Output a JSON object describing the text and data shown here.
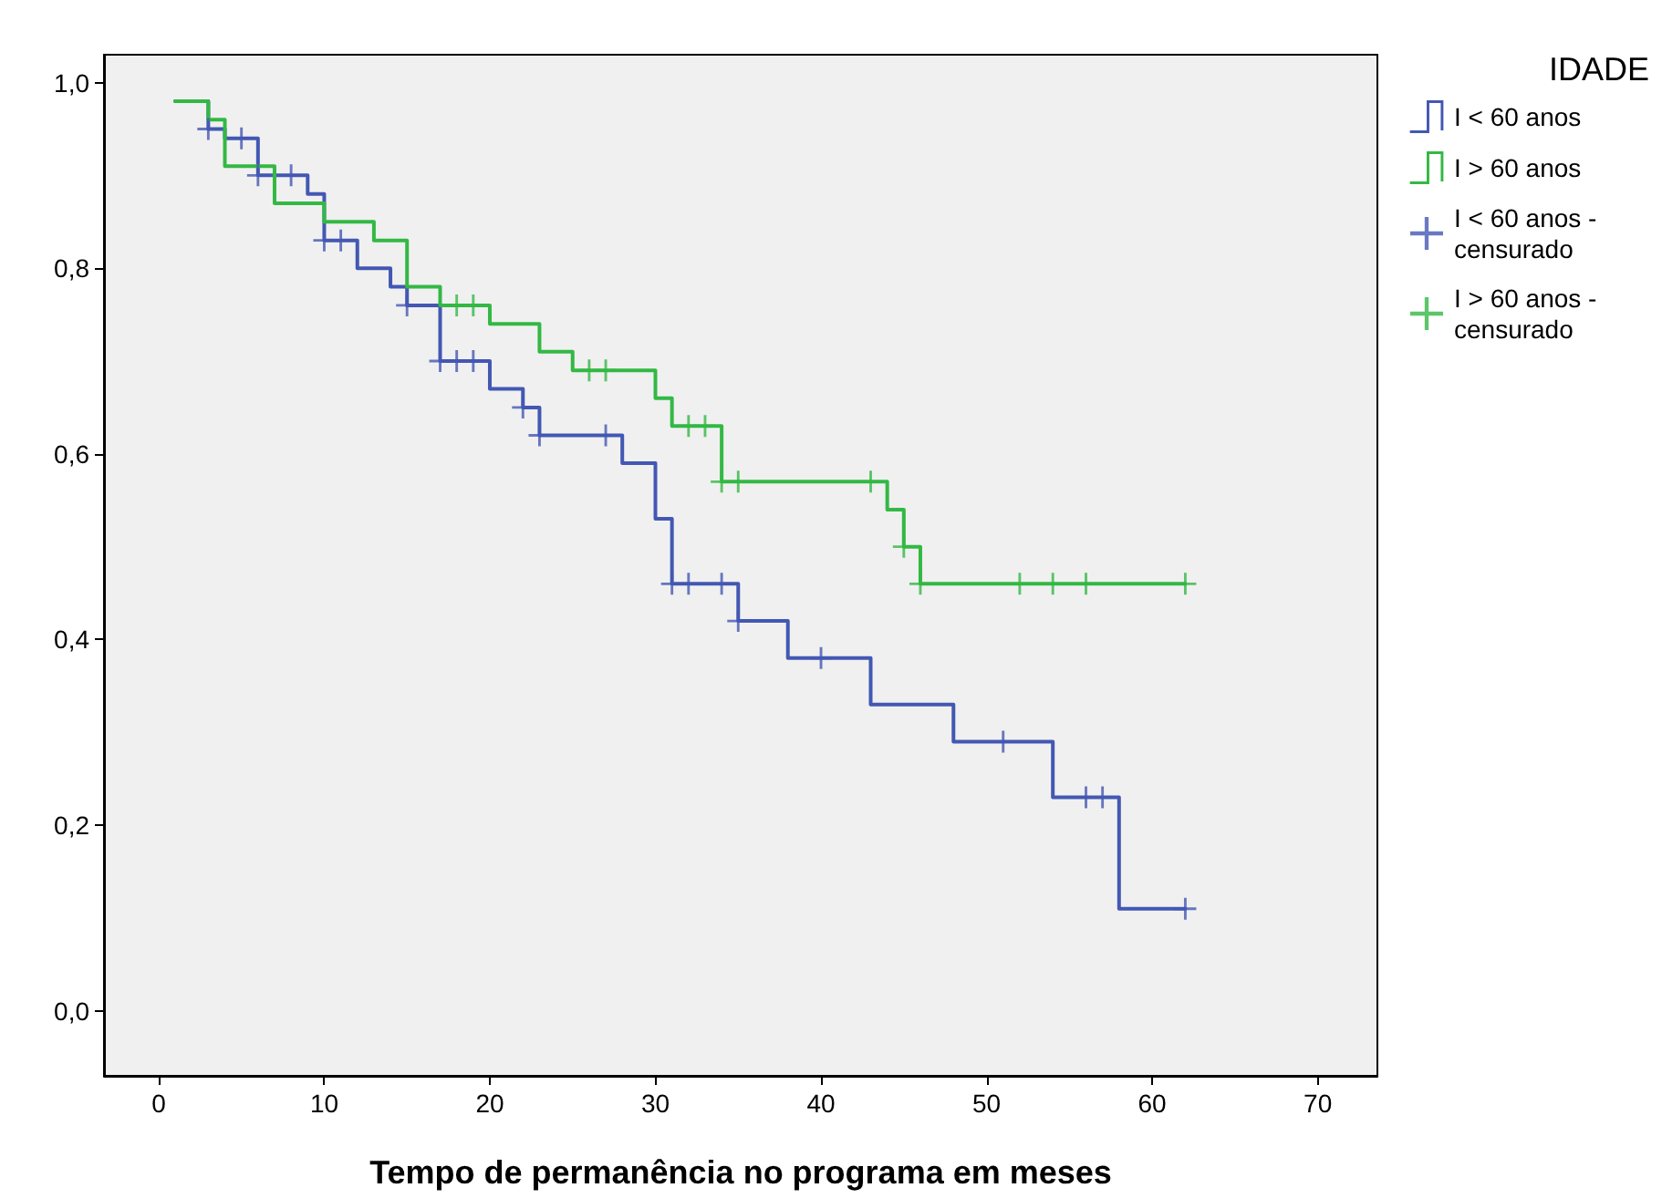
{
  "chart_data": {
    "type": "step",
    "xlabel": "Tempo de permanência no programa em meses",
    "legend_title": "IDADE",
    "xlim": [
      -3.3,
      73.6
    ],
    "xticks": [
      0,
      10,
      20,
      30,
      40,
      50,
      60,
      70
    ],
    "ylim": [
      -0.07,
      1.03
    ],
    "yticks": [
      {
        "value": 0,
        "label": "0,0"
      },
      {
        "value": 0.2,
        "label": "0,2"
      },
      {
        "value": 0.4,
        "label": "0,4"
      },
      {
        "value": 0.6,
        "label": "0,6"
      },
      {
        "value": 0.8,
        "label": "0,8"
      },
      {
        "value": 1,
        "label": "1,0"
      }
    ],
    "grid": false,
    "legend": "top right",
    "line_style": "solid",
    "series": [
      {
        "name": "I < 60 anos",
        "marker": "none",
        "color": "#4358b3",
        "x": [
          1,
          3,
          4,
          6,
          9,
          10,
          12,
          14,
          15,
          17,
          20,
          22,
          23,
          28,
          30,
          31,
          35,
          38,
          43,
          48,
          54,
          58,
          62
        ],
        "values": [
          0.98,
          0.95,
          0.94,
          0.9,
          0.88,
          0.83,
          0.8,
          0.78,
          0.76,
          0.7,
          0.67,
          0.65,
          0.62,
          0.59,
          0.53,
          0.46,
          0.42,
          0.38,
          0.33,
          0.29,
          0.23,
          0.11,
          0.11
        ]
      },
      {
        "name": "I > 60 anos",
        "marker": "none",
        "color": "#33b844",
        "x": [
          1,
          3,
          4,
          7,
          10,
          13,
          15,
          17,
          20,
          23,
          25,
          30,
          31,
          34,
          44,
          45,
          46,
          62
        ],
        "values": [
          0.98,
          0.96,
          0.91,
          0.87,
          0.85,
          0.83,
          0.78,
          0.76,
          0.74,
          0.71,
          0.69,
          0.66,
          0.63,
          0.57,
          0.54,
          0.5,
          0.46,
          0.46
        ]
      },
      {
        "name": "I < 60 anos - censurado",
        "type": "scatter",
        "marker": "cross",
        "color": "#4358b3",
        "x": [
          3,
          5,
          6,
          8,
          10,
          11,
          15,
          17,
          18,
          19,
          22,
          23,
          27,
          31,
          32,
          34,
          35,
          40,
          51,
          56,
          57,
          62
        ],
        "values": [
          0.95,
          0.94,
          0.9,
          0.9,
          0.83,
          0.83,
          0.76,
          0.7,
          0.7,
          0.7,
          0.65,
          0.62,
          0.62,
          0.46,
          0.46,
          0.46,
          0.42,
          0.38,
          0.29,
          0.23,
          0.23,
          0.11
        ]
      },
      {
        "name": "I > 60 anos - censurado",
        "type": "scatter",
        "marker": "cross",
        "color": "#33b844",
        "x": [
          18,
          19,
          26,
          27,
          32,
          33,
          34,
          35,
          43,
          45,
          46,
          52,
          54,
          56,
          62
        ],
        "values": [
          0.76,
          0.76,
          0.69,
          0.69,
          0.63,
          0.63,
          0.57,
          0.57,
          0.57,
          0.5,
          0.46,
          0.46,
          0.46,
          0.46,
          0.46
        ]
      }
    ]
  }
}
